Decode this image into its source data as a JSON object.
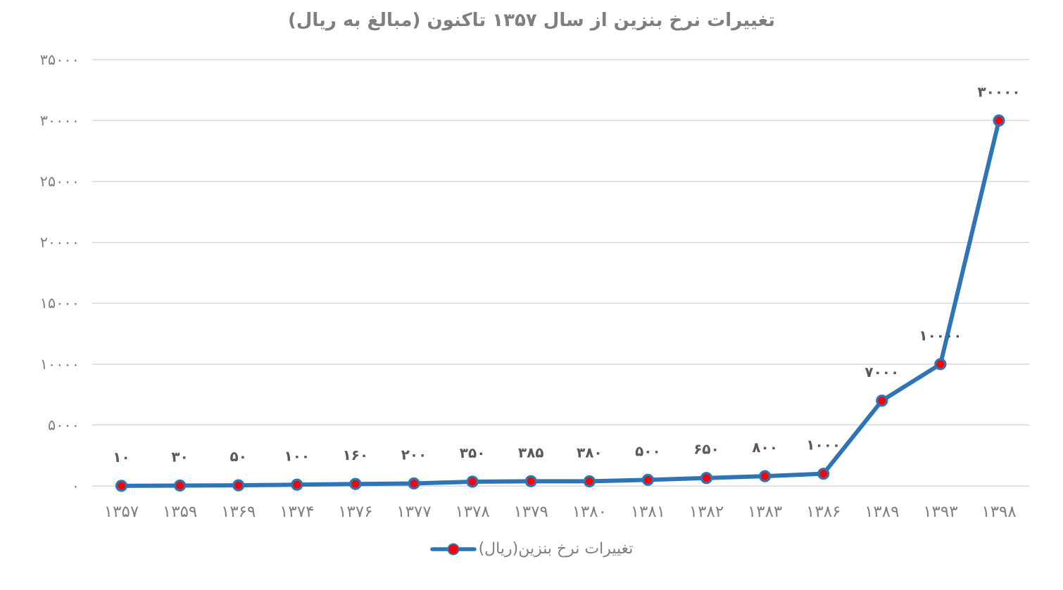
{
  "chart_data": {
    "type": "line",
    "title": "تغییرات نرخ بنزین از سال ۱۳۵۷ تاکنون (مبالغ به ریال)",
    "legend": "تغییرات نرخ بنزین(ریال)",
    "legend_position": "bottom-center",
    "direction": "rtl",
    "grid": "horizontal",
    "xlabel": "",
    "ylabel": "",
    "ylim": [
      0,
      35000
    ],
    "y_tick_step": 5000,
    "categories": [
      "۱۳۵۷",
      "۱۳۵۹",
      "۱۳۶۹",
      "۱۳۷۴",
      "۱۳۷۶",
      "۱۳۷۷",
      "۱۳۷۸",
      "۱۳۷۹",
      "۱۳۸۰",
      "۱۳۸۱",
      "۱۳۸۲",
      "۱۳۸۳",
      "۱۳۸۶",
      "۱۳۸۹",
      "۱۳۹۳",
      "۱۳۹۸"
    ],
    "categories_western": [
      1357,
      1359,
      1369,
      1374,
      1376,
      1377,
      1378,
      1379,
      1380,
      1381,
      1382,
      1383,
      1386,
      1389,
      1393,
      1398
    ],
    "values": [
      10,
      30,
      50,
      100,
      160,
      200,
      350,
      385,
      380,
      500,
      650,
      800,
      1000,
      7000,
      10000,
      30000
    ],
    "data_labels": [
      "۱۰",
      "۳۰",
      "۵۰",
      "۱۰۰",
      "۱۶۰",
      "۲۰۰",
      "۳۵۰",
      "۳۸۵",
      "۳۸۰",
      "۵۰۰",
      "۶۵۰",
      "۸۰۰",
      "۱۰۰۰",
      "۷۰۰۰",
      "۱۰۰۰۰",
      "۳۰۰۰۰"
    ],
    "y_ticks": [
      {
        "label": "۰",
        "value": 0
      },
      {
        "label": "۵۰۰۰",
        "value": 5000
      },
      {
        "label": "۱۰۰۰۰",
        "value": 10000
      },
      {
        "label": "۱۵۰۰۰",
        "value": 15000
      },
      {
        "label": "۲۰۰۰۰",
        "value": 20000
      },
      {
        "label": "۲۵۰۰۰",
        "value": 25000
      },
      {
        "label": "۳۰۰۰۰",
        "value": 30000
      },
      {
        "label": "۳۵۰۰۰",
        "value": 35000
      }
    ]
  },
  "colors": {
    "line": "#2e75b6",
    "marker_fill": "#fe0000",
    "marker_stroke": "#2e75b6",
    "grid": "#d9d9d9",
    "title_text": "#7f7f7f",
    "axis_text": "#7f7f7f",
    "data_label_text": "#595959",
    "background": "#ffffff"
  }
}
